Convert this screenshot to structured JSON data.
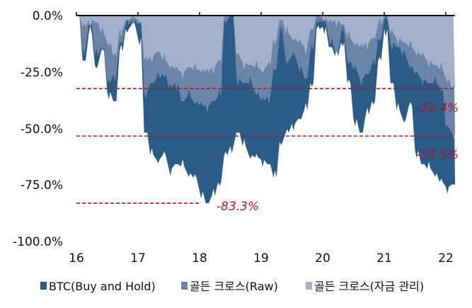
{
  "chart_data": {
    "type": "area",
    "title": "",
    "xlabel": "",
    "ylabel": "",
    "xlim": [
      16,
      22.1
    ],
    "ylim": [
      -100,
      0
    ],
    "x_ticks": [
      "16",
      "17",
      "18",
      "19",
      "20",
      "21",
      "22"
    ],
    "y_ticks": [
      "0.0%",
      "-25.0%",
      "-50.0%",
      "-75.0%",
      "-100.0%"
    ],
    "y_tick_values": [
      0,
      -25,
      -50,
      -75,
      -100
    ],
    "grid": false,
    "legend_position": "bottom",
    "x": [
      16.0,
      16.1,
      16.2,
      16.3,
      16.4,
      16.5,
      16.6,
      16.7,
      16.8,
      16.9,
      17.0,
      17.1,
      17.2,
      17.3,
      17.4,
      17.5,
      17.6,
      17.7,
      17.8,
      17.9,
      18.0,
      18.1,
      18.2,
      18.3,
      18.4,
      18.5,
      18.6,
      18.7,
      18.8,
      18.9,
      19.0,
      19.1,
      19.2,
      19.3,
      19.4,
      19.5,
      19.6,
      19.7,
      19.8,
      19.9,
      20.0,
      20.1,
      20.2,
      20.3,
      20.4,
      20.5,
      20.6,
      20.7,
      20.8,
      20.9,
      21.0,
      21.1,
      21.2,
      21.3,
      21.4,
      21.5,
      21.6,
      21.7,
      21.8,
      21.9,
      22.0,
      22.1
    ],
    "series": [
      {
        "name": "BTC(Buy and Hold)",
        "color": "#2b5b87",
        "values": [
          0,
          -20,
          -8,
          -22,
          -16,
          -34,
          -38,
          -16,
          -6,
          -4,
          -10,
          -52,
          -62,
          -64,
          -62,
          -68,
          -66,
          -67,
          -70,
          -72,
          -78,
          -83.3,
          -80,
          -74,
          -62,
          -58,
          -52,
          -58,
          -62,
          -63,
          -64,
          -66,
          -72,
          -56,
          -52,
          -48,
          -46,
          -42,
          -30,
          -6,
          -5,
          -14,
          -18,
          -12,
          -30,
          -46,
          -52,
          -44,
          -38,
          -20,
          -6,
          -30,
          -42,
          -46,
          -40,
          -60,
          -66,
          -68,
          -70,
          -74,
          -76,
          -75
        ]
      },
      {
        "name": "골든 크로스(Raw)",
        "color": "#6b84a8",
        "values": [
          0,
          -14,
          -4,
          -18,
          -14,
          -30,
          -26,
          -12,
          -4,
          -2,
          -4,
          -34,
          -30,
          -28,
          -26,
          -32,
          -30,
          -38,
          -36,
          -38,
          -40,
          -40,
          -38,
          -36,
          -2,
          0,
          -28,
          -30,
          -30,
          -34,
          -38,
          -36,
          -24,
          -8,
          -20,
          -18,
          -22,
          -28,
          -16,
          -2,
          -3,
          -10,
          -16,
          -8,
          -20,
          -24,
          -28,
          -26,
          -22,
          -10,
          -2,
          -12,
          -14,
          -18,
          -22,
          -26,
          -28,
          -30,
          -30,
          -32,
          -50,
          -52
        ]
      },
      {
        "name": "골든 크로스(자금 관리)",
        "color": "#a2b1c9",
        "values": [
          0,
          -5,
          -2,
          -3,
          -8,
          -12,
          -18,
          -6,
          -2,
          -1,
          -2,
          -20,
          -18,
          -16,
          -20,
          -22,
          -24,
          -25,
          -23,
          -24,
          -24,
          -25,
          -23,
          -20,
          0,
          0,
          -18,
          -21,
          -22,
          -23,
          -24,
          -22,
          -10,
          -2,
          -8,
          -10,
          -12,
          -14,
          -6,
          0,
          -1,
          -3,
          -2,
          -4,
          -10,
          -12,
          -14,
          -12,
          -10,
          -4,
          0,
          -8,
          -10,
          -12,
          -14,
          -16,
          -18,
          -20,
          -22,
          -24,
          -28,
          -32.4
        ]
      }
    ],
    "reference_lines": [
      {
        "value": -32.4,
        "label": "-32.4%",
        "color": "#a01c2a",
        "from": 16,
        "to": 22.1
      },
      {
        "value": -53.5,
        "label": "-53.5%",
        "color": "#a01c2a",
        "from": 16,
        "to": 22.1
      },
      {
        "value": -83.3,
        "label": "-83.3%",
        "color": "#a01c2a",
        "from": 16,
        "to": 18
      }
    ]
  }
}
